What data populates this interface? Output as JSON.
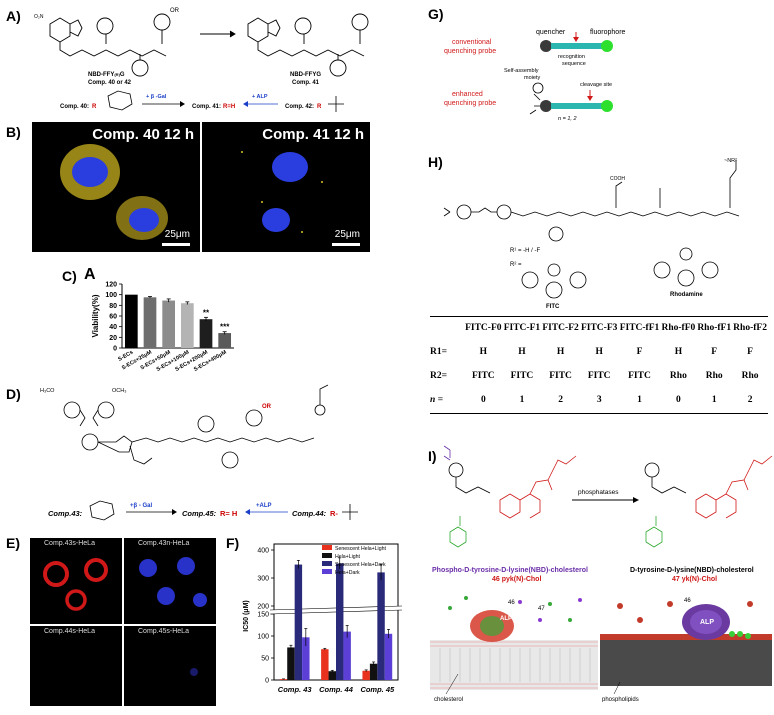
{
  "panel_labels": {
    "a": "A)",
    "b": "B)",
    "c": "C)",
    "c_inner": "A",
    "d": "D)",
    "e": "E)",
    "f": "F)",
    "g": "G)",
    "h": "H)",
    "i": "I)"
  },
  "panel_a": {
    "left_name": "NBD-FFY",
    "left_name_suffix": "(R)",
    "left_name_end": "G",
    "left_comp": "Comp. 40 or 42",
    "right_name": "NBD-FFYG",
    "right_comp": "Comp. 41",
    "sub_r": "OR",
    "eq_left": "Comp. 40:",
    "eq_mid": "Comp. 41:",
    "eq_right": "Comp. 42:",
    "r_label": "R",
    "eq_r_h": "R=H",
    "beta_gal": "+ β -Gal",
    "alp": "+ ALP",
    "no2": "O₂N"
  },
  "panel_b": {
    "left_label": "Comp. 40 12 h",
    "right_label": "Comp. 41 12 h",
    "left_comp_num": "40",
    "right_comp_num": "41",
    "scale": "25μm"
  },
  "panel_c": {
    "ylabel": "Viability(%)",
    "categories": [
      "S-ECs",
      "S-ECs+25μM",
      "S-ECs+50μM",
      "S-ECs+100μM",
      "S-ECs+200μM",
      "S-ECs+400μM"
    ],
    "values": [
      100,
      95,
      89,
      84,
      54,
      28
    ],
    "errors": [
      0,
      1.5,
      3,
      2.5,
      3.5,
      2.5
    ],
    "sig": [
      "",
      "",
      "",
      "",
      "**",
      "***"
    ],
    "ylim": [
      0,
      120
    ],
    "yticks": [
      "0",
      "20",
      "40",
      "60",
      "80",
      "100",
      "120"
    ],
    "colors": [
      "#000000",
      "#6e6e6e",
      "#8c8c8c",
      "#b4b4b4",
      "#1e1e1e",
      "#5a5a5a"
    ]
  },
  "panel_d": {
    "eq_left": "Comp.43:",
    "eq_mid": "Comp.45:",
    "eq_right": "Comp.44:",
    "r_h": "R= H",
    "r_minus": "R-",
    "beta_gal": "+β - Gal",
    "alp": "+ALP",
    "sub_r": "OR",
    "methoxy1": "H₃CO",
    "methoxy2": "OCH₃"
  },
  "panel_e": {
    "labels": [
      "Comp.43s-HeLa",
      "Comp.43n-HeLa",
      "Comp.44s-HeLa",
      "Comp.45s-HeLa"
    ]
  },
  "panel_f": {
    "ylabel": "IC50 (μM)",
    "categories": [
      "Comp. 43",
      "Comp. 44",
      "Comp. 45"
    ],
    "legend": [
      "Senescent Hela+Light",
      "Hela+Light",
      "Senescent Hela+Dark",
      "Hela+Dark"
    ],
    "colors": [
      "#e8321e",
      "#111111",
      "#2a2a7a",
      "#5b3fd6"
    ],
    "series": [
      {
        "name": "Senescent Hela+Light",
        "values": [
          2,
          70,
          21
        ],
        "errors": [
          0.5,
          2,
          2
        ]
      },
      {
        "name": "Hela+Light",
        "values": [
          74,
          20,
          37
        ],
        "errors": [
          5,
          2,
          4
        ]
      },
      {
        "name": "Senescent Hela+Dark",
        "values": [
          348,
          352,
          320
        ],
        "errors": [
          15,
          20,
          28
        ]
      },
      {
        "name": "Hela+Dark",
        "values": [
          97,
          110,
          105
        ],
        "errors": [
          20,
          14,
          10
        ]
      }
    ],
    "yticks": [
      "0",
      "50",
      "100",
      "150",
      "200",
      "300",
      "400"
    ],
    "ylim": [
      0,
      400
    ]
  },
  "panel_g": {
    "quencher": "quencher",
    "fluorophore": "fluorophore",
    "recognition": "recognition\nsequence",
    "conventional": "conventional\nquenching probe",
    "enhanced": "enhanced\nquenching probe",
    "self_assembly": "Self-assembly\nmoiety",
    "cleavage": "cleavage site",
    "n_eq": "n = 1, 2"
  },
  "panel_h": {
    "r1_def": "R¹ = -H / -F",
    "r2": "R² =",
    "fitc": "FITC",
    "rhodamine": "Rhodamine",
    "headers": [
      "FITC-F0",
      "FITC-F1",
      "FITC-F2",
      "FITC-F3",
      "FITC-fF1",
      "Rho-fF0",
      "Rho-fF1",
      "Rho-fF2"
    ],
    "row_labels": [
      "R1=",
      "R2=",
      "n ="
    ],
    "rows": [
      [
        "H",
        "H",
        "H",
        "H",
        "F",
        "H",
        "F",
        "F"
      ],
      [
        "FITC",
        "FITC",
        "FITC",
        "FITC",
        "FITC",
        "Rho",
        "Rho",
        "Rho"
      ],
      [
        "0",
        "1",
        "2",
        "3",
        "1",
        "0",
        "1",
        "2"
      ]
    ],
    "nr2": "~NR²",
    "cooh": "COOH"
  },
  "panel_i": {
    "phosphatases": "phosphatases",
    "left_name": "Phospho-D-tyrosine-D-lysine(NBD)-cholesterol",
    "left_short": "46 pyk(N)-Chol",
    "right_name": "D-tyrosine-D-lysine(NBD)-cholesterol",
    "right_short": "47 yk(N)-Chol",
    "cholesterol": "cholesterol",
    "phospholipids": "phospholipids",
    "alp": "ALP",
    "alp_b": "ALPᴅ",
    "n46": "46",
    "n47": "47",
    "n46b": "46"
  }
}
